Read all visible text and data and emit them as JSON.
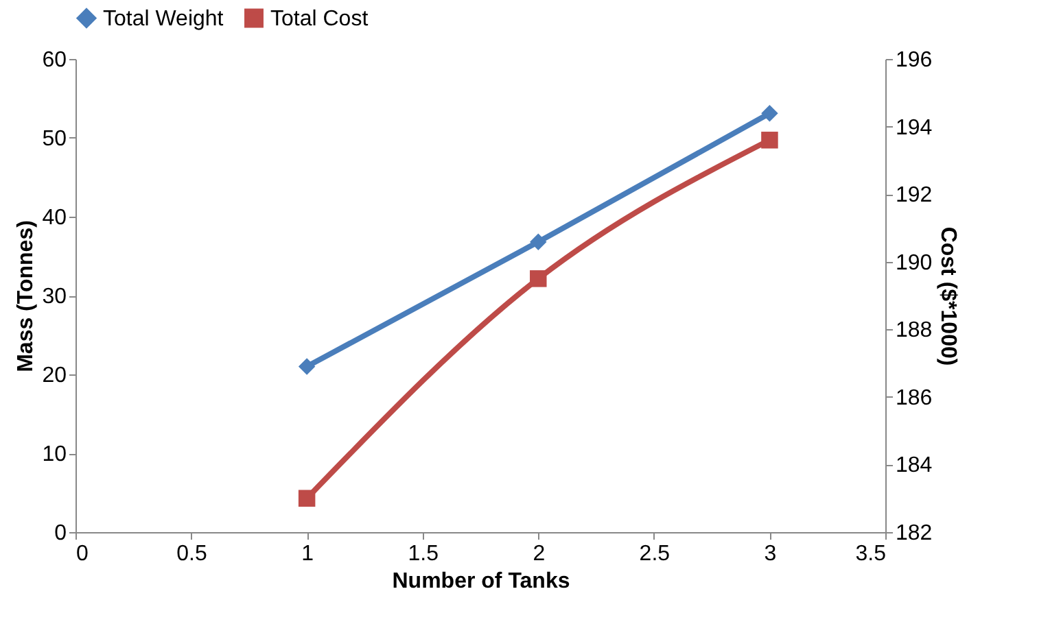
{
  "chart_data": {
    "type": "line",
    "xlabel": "Number of Tanks",
    "ylabel": "Mass (Tonnes)",
    "y2label": "Cost ($*1000)",
    "x": [
      1,
      2,
      3
    ],
    "series": [
      {
        "name": "Total Weight",
        "color": "#4a7ebb",
        "values": [
          21,
          36.8,
          53.1
        ],
        "marker": "diamond"
      },
      {
        "name": "Total Cost",
        "color": "#be4b48",
        "values": [
          183.0,
          189.5,
          193.6
        ],
        "marker": "square",
        "axis": "y2"
      }
    ],
    "xlim": [
      0,
      3.5
    ],
    "xticks": [
      0,
      0.5,
      1,
      1.5,
      2,
      2.5,
      3,
      3.5
    ],
    "ylim": [
      0,
      60
    ],
    "yticks": [
      0,
      10,
      20,
      30,
      40,
      50,
      60
    ],
    "y2lim": [
      182,
      196
    ],
    "y2ticks": [
      182,
      184,
      186,
      188,
      190,
      192,
      194,
      196
    ],
    "grid": false,
    "legend": "top",
    "line_style": "solid"
  }
}
